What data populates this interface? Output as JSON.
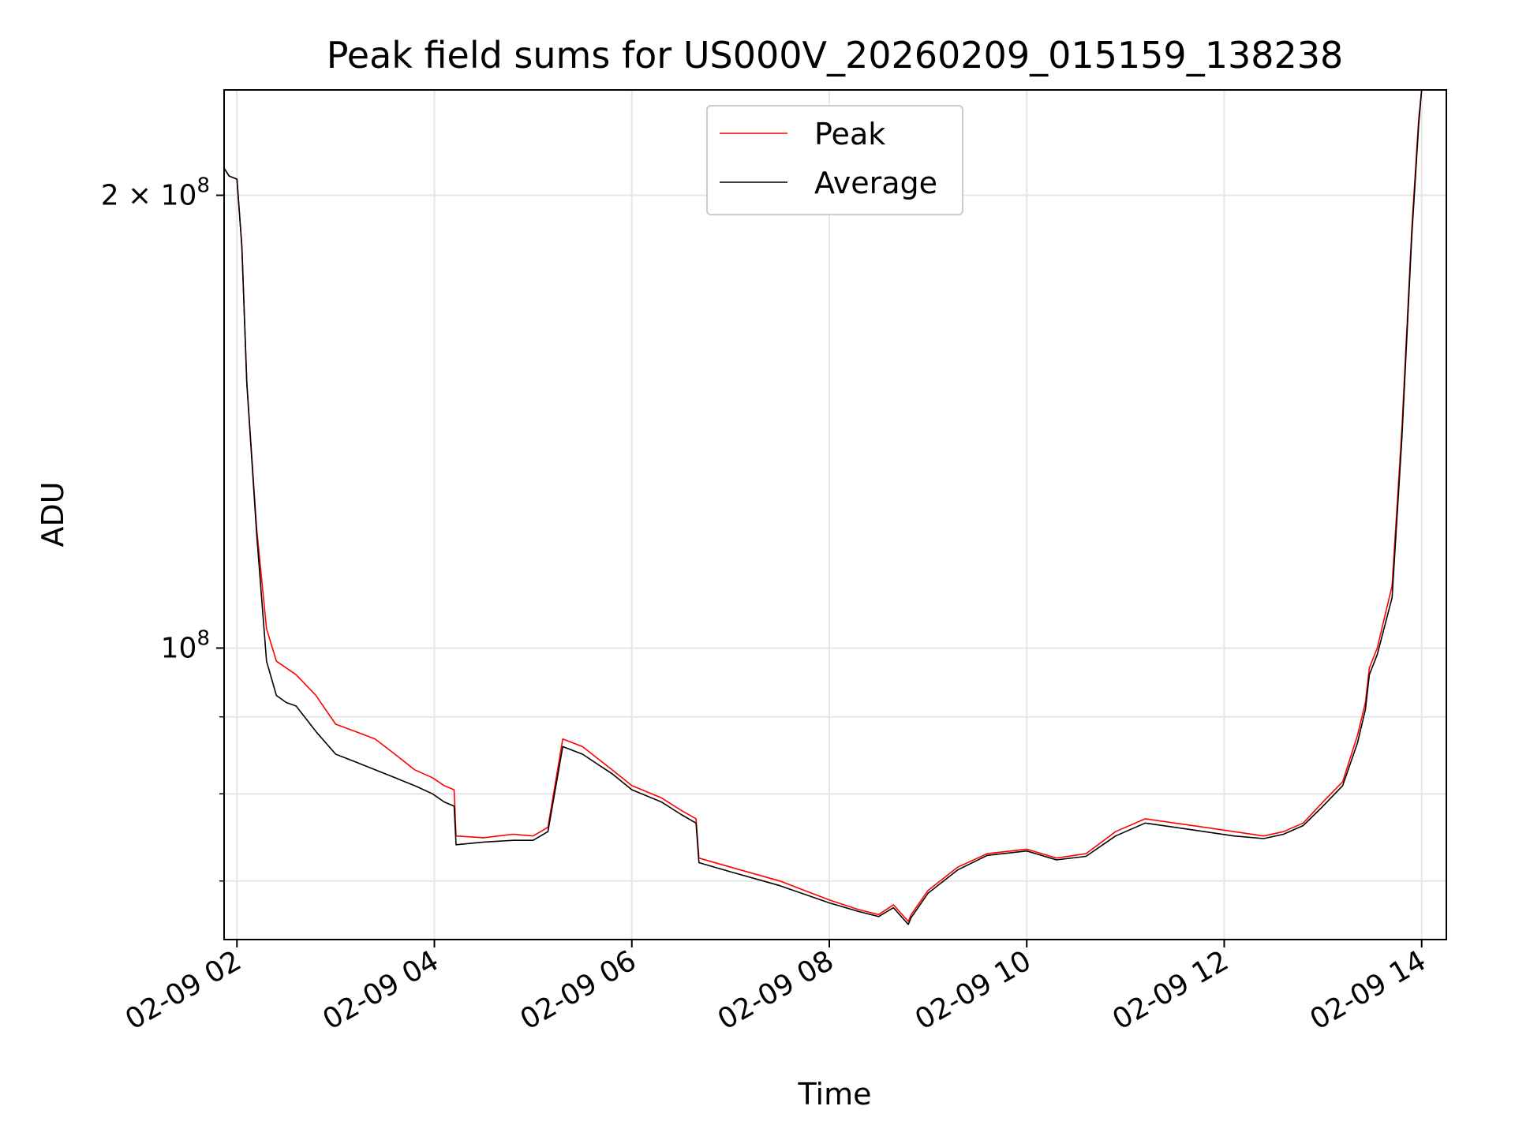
{
  "chart_data": {
    "type": "line",
    "title": "Peak field sums for US000V_20260209_015159_138238",
    "xlabel": "Time",
    "ylabel": "ADU",
    "y_scale": "log",
    "grid": true,
    "legend_placement": "upper-center",
    "x_tick_labels": [
      "02-09 02",
      "02-09 04",
      "02-09 06",
      "02-09 08",
      "02-09 10",
      "02-09 12",
      "02-09 14"
    ],
    "x_ticks_hours": [
      2,
      4,
      6,
      8,
      10,
      12,
      14
    ],
    "xlim_hours": [
      1.87,
      14.25
    ],
    "ylim": [
      64000000,
      235000000
    ],
    "y_major_ticks": [
      {
        "value": 200000000,
        "label_base": "2 × 10",
        "label_exp": "8"
      },
      {
        "value": 100000000,
        "label_base": "10",
        "label_exp": "8"
      }
    ],
    "y_minor_ticks": [
      70000000,
      80000000,
      90000000
    ],
    "series": [
      {
        "name": "Peak",
        "color": "#ff0000",
        "x_hours": [
          1.86,
          1.92,
          2.0,
          2.05,
          2.1,
          2.2,
          2.3,
          2.4,
          2.5,
          2.6,
          2.8,
          3.0,
          3.2,
          3.4,
          3.6,
          3.8,
          3.98,
          4.1,
          4.2,
          4.22,
          4.5,
          4.8,
          5.0,
          5.15,
          5.3,
          5.5,
          5.8,
          6.0,
          6.3,
          6.5,
          6.65,
          6.68,
          7.0,
          7.5,
          8.0,
          8.3,
          8.5,
          8.65,
          8.8,
          8.83,
          9.0,
          9.3,
          9.6,
          10.0,
          10.3,
          10.6,
          10.9,
          11.2,
          11.5,
          11.8,
          12.1,
          12.4,
          12.6,
          12.8,
          13.0,
          13.2,
          13.35,
          13.43,
          13.47,
          13.55,
          13.7,
          13.8,
          13.9,
          13.97,
          14.0
        ],
        "y": [
          209000000,
          206000000,
          205000000,
          185000000,
          150000000,
          120000000,
          103000000,
          98000000,
          97000000,
          96000000,
          93000000,
          89000000,
          88000000,
          87000000,
          85000000,
          83000000,
          82000000,
          81000000,
          80500000,
          75000000,
          74800000,
          75200000,
          75000000,
          76000000,
          87000000,
          86000000,
          83000000,
          81000000,
          79500000,
          78000000,
          77000000,
          72500000,
          71500000,
          70000000,
          68000000,
          67000000,
          66500000,
          67500000,
          65800000,
          66500000,
          69000000,
          71500000,
          73000000,
          73500000,
          72500000,
          73000000,
          75500000,
          77000000,
          76500000,
          76000000,
          75500000,
          75000000,
          75500000,
          76500000,
          79000000,
          81500000,
          87500000,
          92000000,
          97000000,
          100000000,
          110000000,
          140000000,
          190000000,
          225000000,
          235000000
        ]
      },
      {
        "name": "Average",
        "color": "#000000",
        "x_hours": [
          1.86,
          1.92,
          2.0,
          2.05,
          2.1,
          2.2,
          2.3,
          2.4,
          2.5,
          2.6,
          2.8,
          3.0,
          3.2,
          3.4,
          3.6,
          3.8,
          3.98,
          4.1,
          4.2,
          4.22,
          4.5,
          4.8,
          5.0,
          5.15,
          5.3,
          5.5,
          5.8,
          6.0,
          6.3,
          6.5,
          6.65,
          6.68,
          7.0,
          7.5,
          8.0,
          8.3,
          8.5,
          8.65,
          8.8,
          8.83,
          9.0,
          9.3,
          9.6,
          10.0,
          10.3,
          10.6,
          10.9,
          11.2,
          11.5,
          11.8,
          12.1,
          12.4,
          12.6,
          12.8,
          13.0,
          13.2,
          13.35,
          13.43,
          13.47,
          13.55,
          13.7,
          13.8,
          13.9,
          13.97,
          14.0
        ],
        "y": [
          209000000,
          206000000,
          205000000,
          185000000,
          150000000,
          119000000,
          98000000,
          93000000,
          92000000,
          91500000,
          88000000,
          85000000,
          84000000,
          83000000,
          82000000,
          81000000,
          80000000,
          79000000,
          78500000,
          74000000,
          74300000,
          74500000,
          74500000,
          75500000,
          86000000,
          85000000,
          82500000,
          80500000,
          79000000,
          77500000,
          76500000,
          72000000,
          71000000,
          69500000,
          67700000,
          66800000,
          66300000,
          67200000,
          65500000,
          66200000,
          68700000,
          71200000,
          72800000,
          73300000,
          72300000,
          72700000,
          75000000,
          76500000,
          76000000,
          75500000,
          75000000,
          74700000,
          75200000,
          76200000,
          78500000,
          81000000,
          86500000,
          91000000,
          96000000,
          99000000,
          108000000,
          138000000,
          188000000,
          223000000,
          235000000
        ]
      }
    ]
  }
}
